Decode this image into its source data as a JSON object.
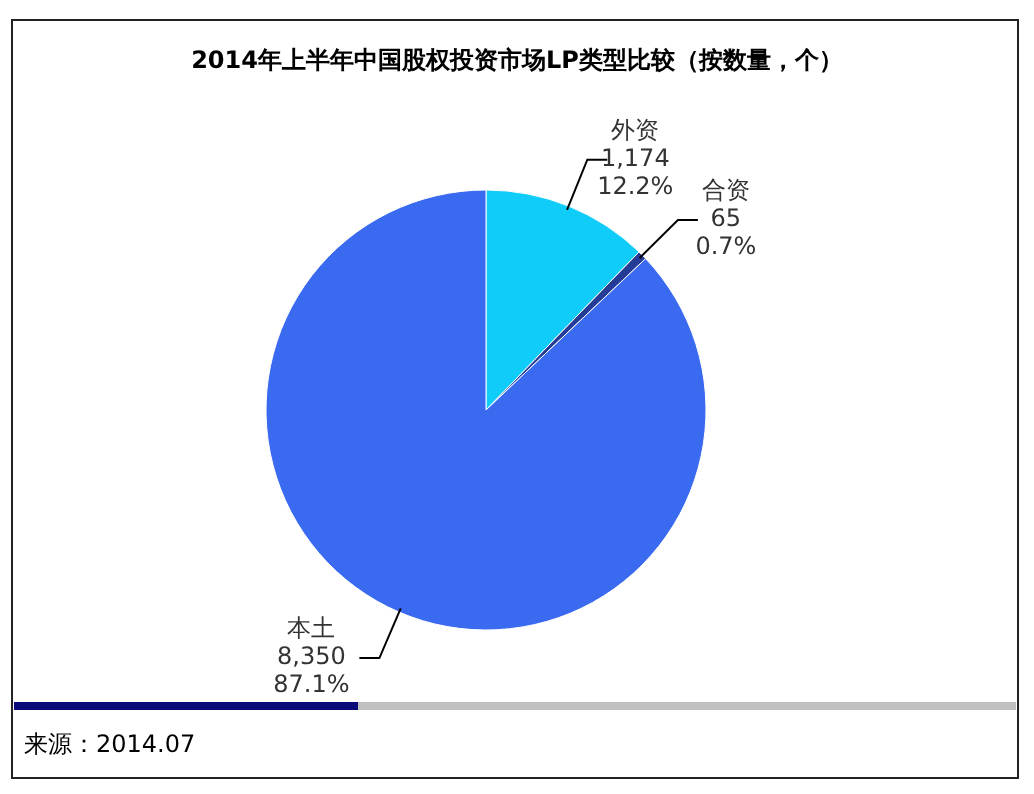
{
  "chart_data": {
    "type": "pie",
    "title": "2014年上半年中国股权投资市场LP类型比较（按数量，个）",
    "categories": [
      "外资",
      "合资",
      "本土"
    ],
    "values": [
      1174,
      65,
      8350
    ],
    "value_labels": [
      "1,174\n12.2%",
      "65\n0.7%",
      "8,350\n87.1%"
    ],
    "colors": [
      "#10ccf8",
      "#243c96",
      "#3a6af0"
    ],
    "annotations": [
      "来源：2014.07"
    ]
  }
}
